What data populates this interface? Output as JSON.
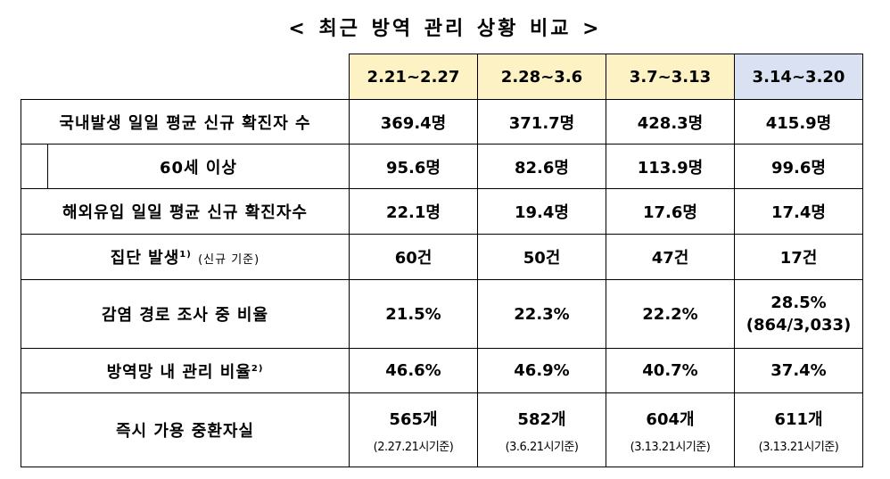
{
  "title": "< 최근 방역 관리 상황 비교 >",
  "columns": [
    "2.21~2.27",
    "2.28~3.6",
    "3.7~3.13",
    "3.14~3.20"
  ],
  "rows": {
    "domestic": {
      "label": "국내발생 일일 평균 신규 확진자 수",
      "values": [
        "369.4명",
        "371.7명",
        "428.3명",
        "415.9명"
      ]
    },
    "over60": {
      "label": "60세 이상",
      "values": [
        "95.6명",
        "82.6명",
        "113.9명",
        "99.6명"
      ]
    },
    "imported": {
      "label": "해외유입 일일 평균 신규 확진자수",
      "values": [
        "22.1명",
        "19.4명",
        "17.6명",
        "17.4명"
      ]
    },
    "cluster": {
      "label": "집단 발생",
      "sup": "1)",
      "note": "(신규 기준)",
      "values": [
        "60건",
        "50건",
        "47건",
        "17건"
      ]
    },
    "investigation": {
      "label": "감염 경로 조사 중 비율",
      "values": [
        "21.5%",
        "22.3%",
        "22.2%",
        "28.5%"
      ],
      "last_detail": "(864/3,033)"
    },
    "managed": {
      "label": "방역망 내 관리 비율",
      "sup": "2)",
      "values": [
        "46.6%",
        "46.9%",
        "40.7%",
        "37.4%"
      ]
    },
    "beds": {
      "label": "즉시 가용 중환자실",
      "values": [
        "565개",
        "582개",
        "604개",
        "611개"
      ],
      "basis": [
        "(2.27.21시기준)",
        "(3.6.21시기준)",
        "(3.13.21시기준)",
        "(3.13.21시기준)"
      ]
    }
  }
}
